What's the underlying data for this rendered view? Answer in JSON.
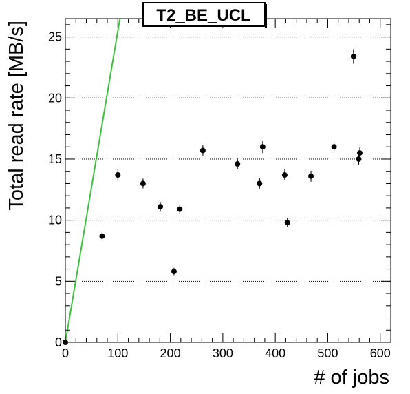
{
  "chart_data": {
    "type": "scatter",
    "title": "T2_BE_UCL",
    "xlabel": "# of jobs",
    "ylabel": "Total read rate [MB/s]",
    "xlim": [
      0,
      620
    ],
    "ylim": [
      0,
      26.5
    ],
    "x_ticks": [
      0,
      100,
      200,
      300,
      400,
      500,
      600
    ],
    "x_tick_labels": [
      "0",
      "100",
      "200",
      "300",
      "400",
      "500",
      "600"
    ],
    "y_ticks": [
      0,
      5,
      10,
      15,
      20,
      25
    ],
    "y_tick_labels": [
      "0",
      "5",
      "10",
      "15",
      "20",
      "25"
    ],
    "grid": "horizontal dotted",
    "points": [
      {
        "x": 0,
        "y": 0.0,
        "err": 0.15
      },
      {
        "x": 70,
        "y": 8.7,
        "err": 0.35
      },
      {
        "x": 100,
        "y": 13.7,
        "err": 0.45
      },
      {
        "x": 148,
        "y": 13.0,
        "err": 0.4
      },
      {
        "x": 181,
        "y": 11.1,
        "err": 0.4
      },
      {
        "x": 207,
        "y": 5.8,
        "err": 0.3
      },
      {
        "x": 218,
        "y": 10.9,
        "err": 0.4
      },
      {
        "x": 262,
        "y": 15.7,
        "err": 0.45
      },
      {
        "x": 328,
        "y": 14.6,
        "err": 0.45
      },
      {
        "x": 370,
        "y": 13.0,
        "err": 0.45
      },
      {
        "x": 376,
        "y": 16.0,
        "err": 0.5
      },
      {
        "x": 418,
        "y": 13.7,
        "err": 0.45
      },
      {
        "x": 423,
        "y": 9.8,
        "err": 0.35
      },
      {
        "x": 468,
        "y": 13.6,
        "err": 0.45
      },
      {
        "x": 512,
        "y": 16.0,
        "err": 0.45
      },
      {
        "x": 549,
        "y": 23.4,
        "err": 0.6
      },
      {
        "x": 559,
        "y": 15.0,
        "err": 0.45
      },
      {
        "x": 561,
        "y": 15.5,
        "err": 0.45
      }
    ],
    "reference_line": {
      "x": [
        0,
        104
      ],
      "y": [
        0,
        26.5
      ]
    },
    "colors": {
      "points": "#000000",
      "reference_line": "#3fbf3f",
      "grid": "#000000",
      "background": "#ffffff"
    }
  }
}
